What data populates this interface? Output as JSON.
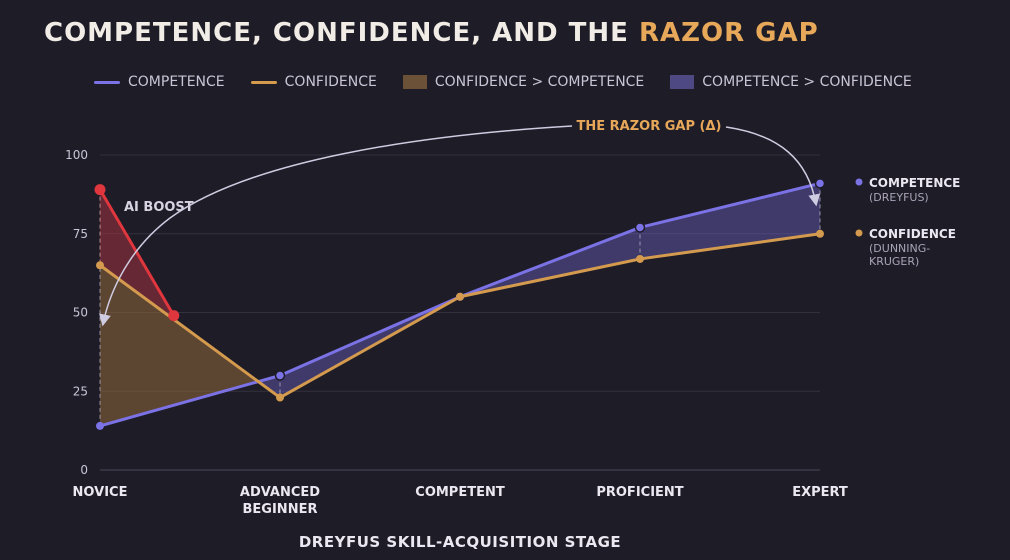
{
  "title": {
    "main": "COMPETENCE, CONFIDENCE, AND THE ",
    "accent": "RAZOR GAP"
  },
  "legend": [
    {
      "label": "COMPETENCE",
      "kind": "line",
      "color": "#7b72e6"
    },
    {
      "label": "CONFIDENCE",
      "kind": "line",
      "color": "#d49a4e"
    },
    {
      "label": "CONFIDENCE > COMPETENCE",
      "kind": "box",
      "color": "#6a5138"
    },
    {
      "label": "COMPETENCE > CONFIDENCE",
      "kind": "box",
      "color": "#4e4883"
    }
  ],
  "chart_data": {
    "type": "line",
    "categories": [
      "NOVICE",
      "ADVANCED BEGINNER",
      "COMPETENT",
      "PROFICIENT",
      "EXPERT"
    ],
    "series": [
      {
        "name": "COMPETENCE",
        "values": [
          14,
          30,
          55,
          77,
          91
        ],
        "color": "#7b72e6"
      },
      {
        "name": "CONFIDENCE",
        "values": [
          65,
          23,
          55,
          67,
          75
        ],
        "color": "#d49a4e"
      }
    ],
    "ai_boost": {
      "x": [
        0,
        0.41
      ],
      "y": [
        89,
        49
      ],
      "label": "AI BOOST",
      "color": "#e0363d"
    },
    "ylim": [
      0,
      100
    ],
    "yticks": [
      0,
      25,
      50,
      75,
      100
    ],
    "xlabel": "DREYFUS SKILL-ACQUISITION STAGE",
    "ylabel": "",
    "gap_annotation": "THE RAZOR GAP (Δ)",
    "end_labels": [
      {
        "name": "COMPETENCE",
        "sub": [
          "(DREYFUS)"
        ],
        "color": "#7b72e6"
      },
      {
        "name": "CONFIDENCE",
        "sub": [
          "(DUNNING-",
          "KRUGER)"
        ],
        "color": "#d49a4e"
      }
    ],
    "grid": true
  }
}
